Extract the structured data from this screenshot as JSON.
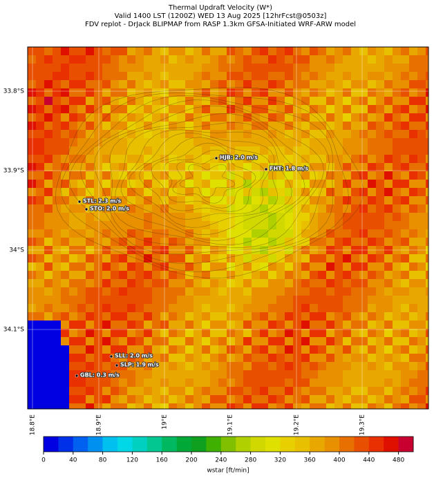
{
  "title": [
    "Thermal Updraft Velocity (W*)",
    "Valid 1400 LST (1200Z) WED 13 Aug 2025 [12hrFcst@0503z]",
    "FDV replot - DrJack BLIPMAP from RASP 1.3km GFSA-Initiated WRF-ARW model"
  ],
  "map": {
    "lat_labels": [
      "33.8°S",
      "33.9°S",
      "34°S",
      "34.1°S"
    ],
    "lon_labels": [
      "18.8°E",
      "18.9°E",
      "19°E",
      "19.1°E",
      "19.2°E",
      "19.3°E"
    ],
    "stations": [
      {
        "label": "HJB: 2.0 m/s"
      },
      {
        "label": "FHT: 1.8 m/s"
      },
      {
        "label": "STL: 2.3 m/s"
      },
      {
        "label": "STO: 2.0 m/s"
      },
      {
        "label": "SLL: 2.0 m/s"
      },
      {
        "label": "SLP: 1.9 m/s"
      },
      {
        "label": "GBL: 0.3 m/s"
      }
    ]
  },
  "colorbar": {
    "label": "wstar [ft/min]",
    "range": [
      0,
      500
    ],
    "ticks": [
      0,
      40,
      80,
      120,
      160,
      200,
      240,
      280,
      320,
      360,
      400,
      440,
      480
    ],
    "colors": [
      "#0000e0",
      "#0030e8",
      "#0060f0",
      "#0090f0",
      "#00c0f0",
      "#00d8e8",
      "#00d0c0",
      "#00c890",
      "#00b860",
      "#00a838",
      "#10a020",
      "#40b000",
      "#80c000",
      "#b0d000",
      "#d0d800",
      "#e0e000",
      "#e8d000",
      "#e8c000",
      "#e8a800",
      "#e89000",
      "#e87000",
      "#e85000",
      "#e83000",
      "#e01000",
      "#c80030"
    ]
  }
}
